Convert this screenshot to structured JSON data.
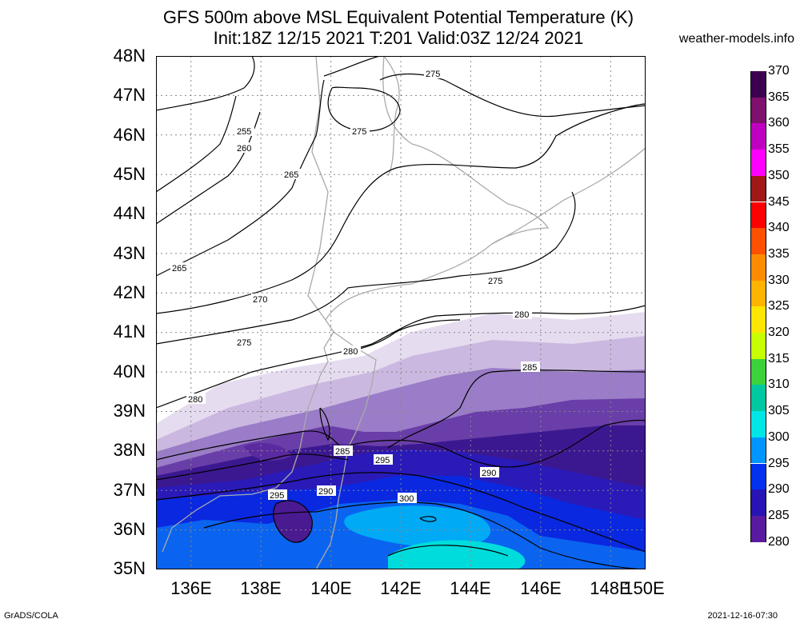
{
  "title_line1": "GFS 500m above MSL Equivalent Potential Temperature (K)",
  "title_line2": "Init:18Z 12/15 2021 T:201 Valid:03Z 12/24 2021",
  "brand": "weather-models.info",
  "footer_left": "GrADS/COLA",
  "footer_right": "2021-12-16-07:30",
  "lat_labels": [
    "48N",
    "47N",
    "46N",
    "45N",
    "44N",
    "43N",
    "42N",
    "41N",
    "40N",
    "39N",
    "38N",
    "37N",
    "36N",
    "35N"
  ],
  "lon_labels": [
    "136E",
    "138E",
    "140E",
    "142E",
    "144E",
    "146E",
    "148E",
    "150E"
  ],
  "colorbar_labels": [
    "370",
    "365",
    "360",
    "355",
    "350",
    "345",
    "340",
    "335",
    "330",
    "325",
    "320",
    "315",
    "310",
    "305",
    "300",
    "295",
    "290",
    "285",
    "280"
  ],
  "colorbar_colors": [
    "#3c0050",
    "#80106e",
    "#c000c0",
    "#ff00ff",
    "#a01818",
    "#ff0000",
    "#ff5000",
    "#ff8c00",
    "#ffb400",
    "#ffe600",
    "#c8ff00",
    "#3cd23c",
    "#00c8a0",
    "#00e6e6",
    "#0096ff",
    "#0032f0",
    "#2814b4",
    "#5a1aa0",
    "#e6dcf0"
  ],
  "contour_labels": [
    "275",
    "275",
    "255",
    "260",
    "265",
    "265",
    "270",
    "275",
    "275",
    "280",
    "280",
    "280",
    "285",
    "285",
    "295",
    "290",
    "295",
    "290",
    "300"
  ]
}
